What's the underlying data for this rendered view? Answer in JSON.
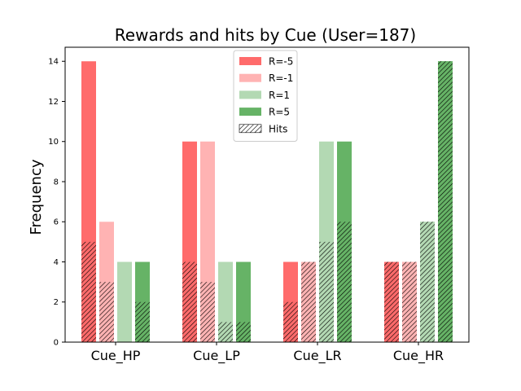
{
  "chart_data": {
    "type": "bar",
    "title": "Rewards and hits by Cue (User=187)",
    "xlabel": "",
    "ylabel": "Frequency",
    "ylim": [
      0,
      14.7
    ],
    "yticks": [
      "0",
      "2",
      "4",
      "6",
      "8",
      "10",
      "12",
      "14"
    ],
    "categories": [
      "Cue_HP",
      "Cue_LP",
      "Cue_LR",
      "Cue_HR"
    ],
    "series": [
      {
        "name": "R=-5",
        "color": "#ff6b6b",
        "values": [
          14,
          10,
          4,
          4
        ]
      },
      {
        "name": "R=-1",
        "color": "#ffb3b3",
        "values": [
          6,
          10,
          4,
          4
        ]
      },
      {
        "name": "R=1",
        "color": "#b3d9b3",
        "values": [
          4,
          4,
          10,
          6
        ]
      },
      {
        "name": "R=5",
        "color": "#66b366",
        "values": [
          4,
          4,
          10,
          14
        ]
      }
    ],
    "hits": {
      "name": "Hits",
      "values": [
        [
          5,
          3,
          0,
          2
        ],
        [
          4,
          3,
          1,
          1
        ],
        [
          2,
          4,
          5,
          6
        ],
        [
          4,
          4,
          6,
          14
        ]
      ]
    },
    "legend_position": "top-center",
    "grid": false
  }
}
